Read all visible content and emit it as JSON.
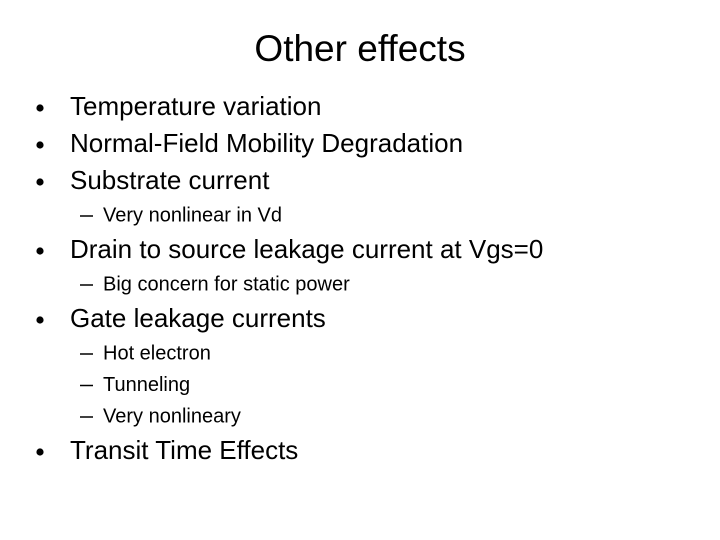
{
  "title": "Other effects",
  "items": [
    {
      "text": "Temperature variation"
    },
    {
      "text": "Normal-Field Mobility Degradation"
    },
    {
      "text": "Substrate current",
      "subitems": [
        "Very nonlinear in Vd"
      ]
    },
    {
      "text": "Drain to source leakage current at Vgs=0",
      "subitems": [
        "Big concern for static power"
      ]
    },
    {
      "text": "Gate leakage currents",
      "subitems": [
        "Hot electron",
        "Tunneling",
        "Very nonlineary"
      ]
    },
    {
      "text": "Transit Time Effects"
    }
  ]
}
